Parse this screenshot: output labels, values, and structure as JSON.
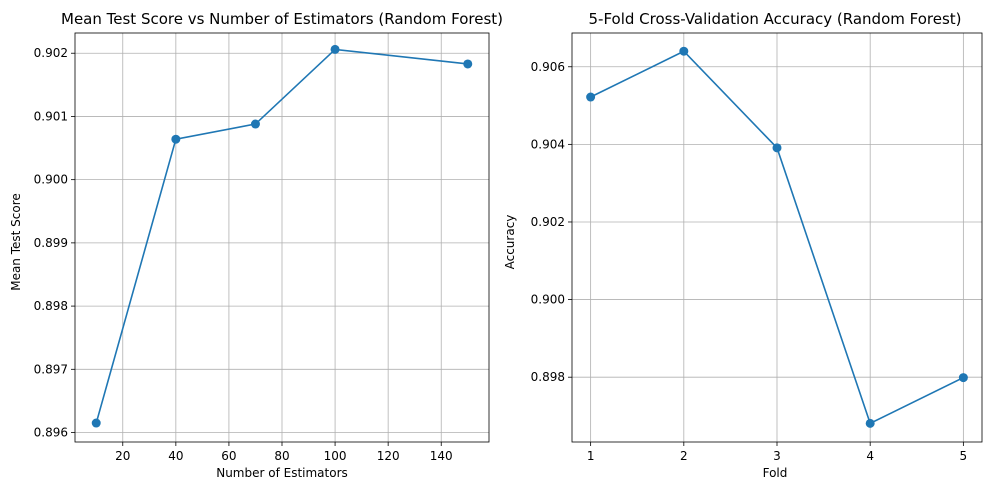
{
  "chart_data": [
    {
      "type": "line",
      "title": "Mean Test Score vs Number of Estimators (Random Forest)",
      "xlabel": "Number of Estimators",
      "ylabel": "Mean Test Score",
      "x": [
        10,
        40,
        70,
        100,
        150
      ],
      "y": [
        0.89615,
        0.90064,
        0.90088,
        0.90206,
        0.90183
      ],
      "xlim": [
        2,
        158
      ],
      "ylim": [
        0.89585,
        0.90232
      ],
      "xticks": [
        20,
        40,
        60,
        80,
        100,
        120,
        140
      ],
      "yticks": [
        0.896,
        0.897,
        0.898,
        0.899,
        0.9,
        0.901,
        0.902
      ],
      "tick_decimals": 3,
      "grid": true,
      "marker": "circle",
      "color": "#1f77b4"
    },
    {
      "type": "line",
      "title": "5-Fold Cross-Validation Accuracy (Random Forest)",
      "xlabel": "Fold",
      "ylabel": "Accuracy",
      "x": [
        1,
        2,
        3,
        4,
        5
      ],
      "y": [
        0.90522,
        0.9064,
        0.90391,
        0.89681,
        0.89799
      ],
      "xlim": [
        0.8,
        5.2
      ],
      "ylim": [
        0.89633,
        0.90687
      ],
      "xticks": [
        1,
        2,
        3,
        4,
        5
      ],
      "yticks": [
        0.898,
        0.9,
        0.902,
        0.904,
        0.906
      ],
      "tick_decimals": 3,
      "grid": true,
      "marker": "circle",
      "color": "#1f77b4"
    }
  ]
}
